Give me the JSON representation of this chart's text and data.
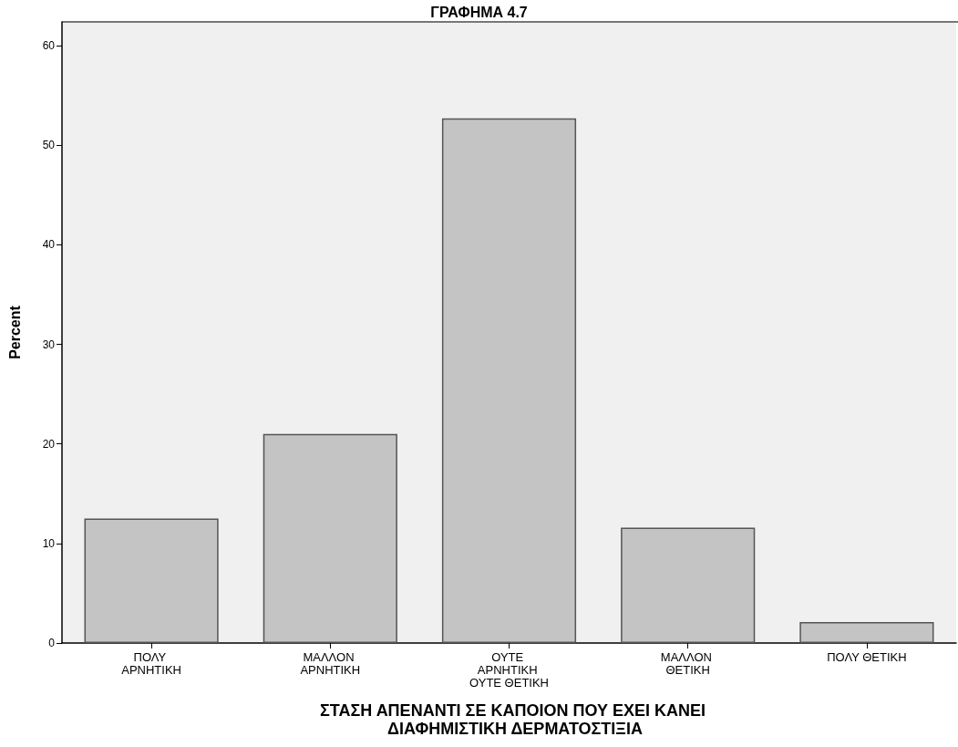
{
  "chart_data": {
    "type": "bar",
    "title": "ΓΡΑΦΗΜΑ 4.7",
    "xlabel": "ΣΤΑΣΗ ΑΠΕΝΑΝΤΙ ΣΕ ΚΑΠΟΙΟΝ ΠΟΥ ΕΧΕΙ ΚΑΝΕΙ ΔΙΑΦΗΜΙΣΤΙΚΗ ΔΕΡΜΑΤΟΣΤΙΞΙΑ",
    "ylabel": "Percent",
    "categories": [
      "ΠΟΛΥ ΑΡΝΗΤΙΚΗ",
      "ΜΑΛΛΟΝ ΑΡΝΗΤΙΚΗ",
      "ΟΥΤΕ ΑΡΝΗΤΙΚΗ ΟΥΤΕ ΘΕΤΙΚΗ",
      "ΜΑΛΛΟΝ ΘΕΤΙΚΗ",
      "ΠΟΛΥ ΘΕΤΙΚΗ"
    ],
    "values": [
      12.5,
      21,
      52.7,
      11.6,
      2.1
    ],
    "color": "#c4c4c4",
    "ylim": [
      0,
      62.4
    ],
    "yticks": [
      0,
      10,
      20,
      30,
      40,
      50,
      60
    ]
  }
}
